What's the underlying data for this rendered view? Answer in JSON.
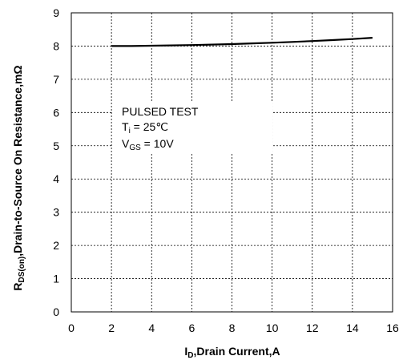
{
  "chart_data": {
    "type": "line",
    "xlabel": {
      "main": "I",
      "sub": "D",
      "rest": ",Drain Current,A"
    },
    "ylabel": {
      "main": "R",
      "sub": "DS(on)",
      "rest": ",Drain-to-Source On Resistance,mΩ"
    },
    "xlim": [
      0,
      16
    ],
    "ylim": [
      0,
      9
    ],
    "xticks": [
      0,
      2,
      4,
      6,
      8,
      10,
      12,
      14,
      16
    ],
    "yticks": [
      0,
      1,
      2,
      3,
      4,
      5,
      6,
      7,
      8,
      9
    ],
    "grid": true,
    "series": [
      {
        "x": [
          2,
          3,
          4,
          5,
          6,
          7,
          8,
          9,
          10,
          11,
          12,
          13,
          14,
          15
        ],
        "y": [
          8.0,
          8.0,
          8.01,
          8.02,
          8.03,
          8.045,
          8.06,
          8.08,
          8.1,
          8.125,
          8.15,
          8.18,
          8.21,
          8.25
        ],
        "color": "#000000"
      }
    ],
    "annotations": {
      "line1": "PULSED TEST",
      "line2": {
        "main": "T",
        "sub": "i",
        "rest": " = 25℃"
      },
      "line3": {
        "main": "V",
        "sub": "GS",
        "rest": " = 10V"
      }
    }
  }
}
